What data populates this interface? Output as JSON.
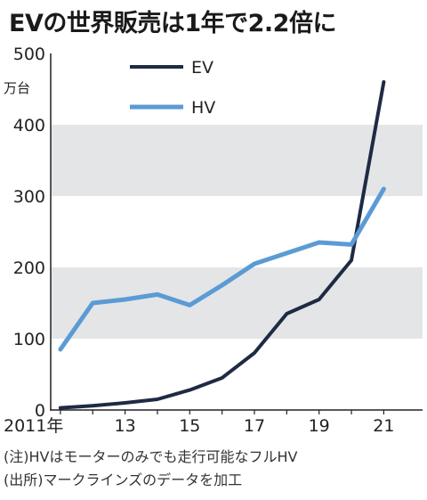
{
  "title": "EVの世界販売は1年で2.2倍に",
  "notes": [
    "(注)HVはモーターのみでも走行可能なフルHV",
    "(出所)マークラインズのデータを加工"
  ],
  "colors": {
    "ev": "#1f2a44",
    "hv": "#5b9bd5",
    "band": "#e3e5e6",
    "axis": "#222222"
  },
  "chart_data": {
    "type": "line",
    "title": "EVの世界販売は1年で2.2倍に",
    "ylabel": "万台",
    "xlabel": "",
    "x": [
      2011,
      2012,
      2013,
      2014,
      2015,
      2016,
      2017,
      2018,
      2019,
      2020,
      2021
    ],
    "x_tick_labels": [
      {
        "x": 2011,
        "label": "2011年"
      },
      {
        "x": 2013,
        "label": "13"
      },
      {
        "x": 2015,
        "label": "15"
      },
      {
        "x": 2017,
        "label": "17"
      },
      {
        "x": 2019,
        "label": "19"
      },
      {
        "x": 2021,
        "label": "21"
      }
    ],
    "y_ticks": [
      0,
      100,
      200,
      300,
      400,
      500
    ],
    "ylim": [
      0,
      500
    ],
    "xlim": [
      2010.7,
      2022.2
    ],
    "bands": [
      [
        100,
        200
      ],
      [
        300,
        400
      ]
    ],
    "legend_position": "top-left",
    "series": [
      {
        "name": "EV",
        "key": "ev",
        "values": [
          3,
          6,
          10,
          15,
          28,
          45,
          80,
          135,
          155,
          210,
          460
        ]
      },
      {
        "name": "HV",
        "key": "hv",
        "values": [
          85,
          150,
          155,
          162,
          147,
          175,
          205,
          220,
          235,
          232,
          310
        ]
      }
    ]
  }
}
